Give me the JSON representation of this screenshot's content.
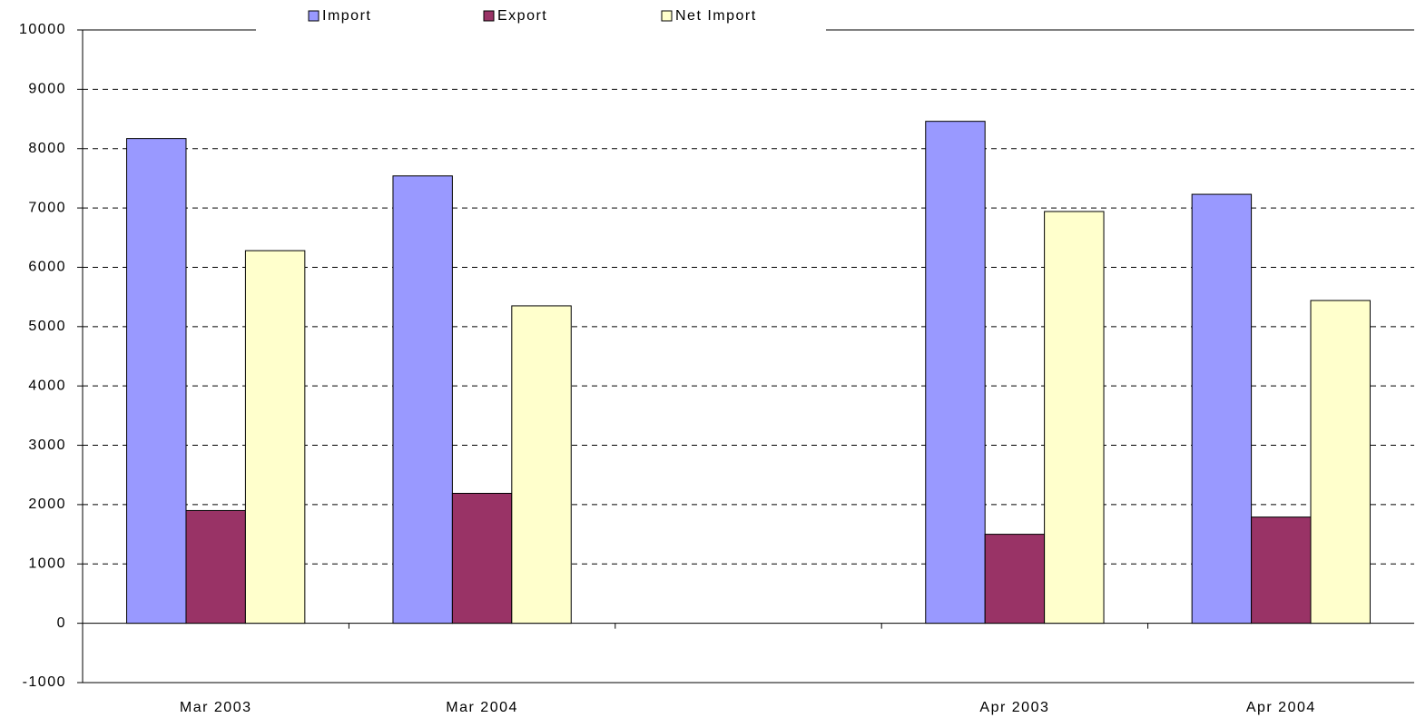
{
  "chart_data": {
    "type": "bar",
    "categories": [
      "Mar 2003",
      "Mar 2004",
      null,
      "Apr 2003",
      "Apr 2004"
    ],
    "series": [
      {
        "name": "Import",
        "color": "#9999ff",
        "values": [
          8170,
          7540,
          null,
          8460,
          7230
        ]
      },
      {
        "name": "Export",
        "color": "#993366",
        "values": [
          1900,
          2190,
          null,
          1500,
          1790
        ]
      },
      {
        "name": "Net Import",
        "color": "#ffffcc",
        "values": [
          6280,
          5350,
          null,
          6940,
          5440
        ]
      }
    ],
    "ylim": [
      -1000,
      10000
    ],
    "yticks": [
      -1000,
      0,
      1000,
      2000,
      3000,
      4000,
      5000,
      6000,
      7000,
      8000,
      9000,
      10000
    ],
    "grid": true,
    "legend": "top"
  }
}
